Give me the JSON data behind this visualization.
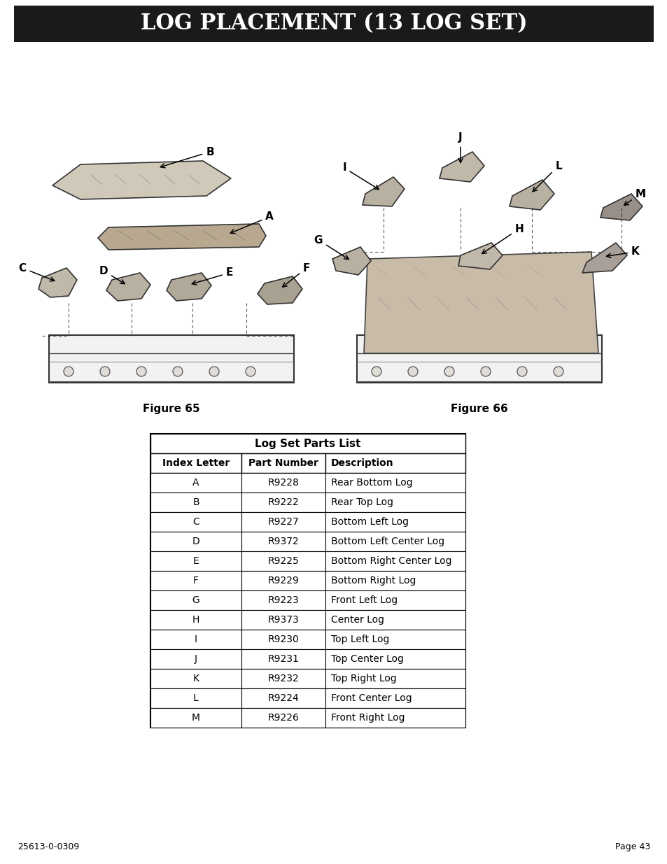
{
  "title": "LOG PLACEMENT (13 LOG SET)",
  "title_bg": "#1a1a1a",
  "title_fg": "#ffffff",
  "title_fontsize": 22,
  "fig1_label": "Figure 65",
  "fig2_label": "Figure 66",
  "table_title": "Log Set Parts List",
  "col_headers": [
    "Index Letter",
    "Part Number",
    "Description"
  ],
  "rows": [
    [
      "A",
      "R9228",
      "Rear Bottom Log"
    ],
    [
      "B",
      "R9222",
      "Rear Top Log"
    ],
    [
      "C",
      "R9227",
      "Bottom Left Log"
    ],
    [
      "D",
      "R9372",
      "Bottom Left Center Log"
    ],
    [
      "E",
      "R9225",
      "Bottom Right Center Log"
    ],
    [
      "F",
      "R9229",
      "Bottom Right Log"
    ],
    [
      "G",
      "R9223",
      "Front Left Log"
    ],
    [
      "H",
      "R9373",
      "Center Log"
    ],
    [
      "I",
      "R9230",
      "Top Left Log"
    ],
    [
      "J",
      "R9231",
      "Top Center Log"
    ],
    [
      "K",
      "R9232",
      "Top Right Log"
    ],
    [
      "L",
      "R9224",
      "Front Center Log"
    ],
    [
      "M",
      "R9226",
      "Front Right Log"
    ]
  ],
  "footer_left": "25613-0-0309",
  "footer_right": "Page 43",
  "bg_color": "#ffffff",
  "border_color": "#000000",
  "header_row_bg": "#ffffff",
  "data_row_bg": "#ffffff",
  "font_color": "#000000"
}
